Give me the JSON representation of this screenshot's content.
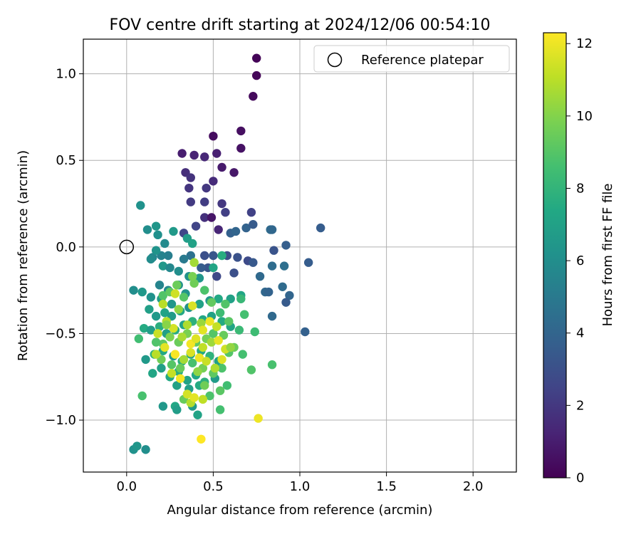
{
  "chart_data": {
    "type": "scatter",
    "title": "FOV centre drift starting at 2024/12/06 00:54:10",
    "xlabel": "Angular distance from reference (arcmin)",
    "ylabel": "Rotation from reference (arcmin)",
    "xlim": [
      -0.25,
      2.25
    ],
    "ylim": [
      -1.3,
      1.2
    ],
    "x_ticks": [
      0.0,
      0.5,
      1.0,
      1.5,
      2.0
    ],
    "x_tick_labels": [
      "0.0",
      "0.5",
      "1.0",
      "1.5",
      "2.0"
    ],
    "y_ticks": [
      -1.0,
      -0.5,
      0.0,
      0.5,
      1.0
    ],
    "y_tick_labels": [
      "−1.0",
      "−0.5",
      "0.0",
      "0.5",
      "1.0"
    ],
    "grid": true,
    "legend": {
      "placement": "top-right",
      "entries": [
        "Reference platepar"
      ]
    },
    "reference_point": {
      "x": 0.0,
      "y": 0.0,
      "label": "Reference platepar"
    },
    "colorbar": {
      "label": "Hours from first FF file",
      "range": [
        0,
        12.3
      ],
      "ticks": [
        0,
        2,
        4,
        6,
        8,
        10,
        12
      ],
      "tick_labels": [
        "0",
        "2",
        "4",
        "6",
        "8",
        "10",
        "12"
      ],
      "colormap": "viridis"
    },
    "points": [
      [
        0.75,
        1.09,
        0.1
      ],
      [
        0.75,
        0.99,
        0.2
      ],
      [
        0.73,
        0.87,
        0.3
      ],
      [
        0.5,
        0.64,
        0.4
      ],
      [
        0.66,
        0.67,
        0.5
      ],
      [
        0.66,
        0.57,
        0.6
      ],
      [
        0.32,
        0.54,
        1.0
      ],
      [
        0.39,
        0.53,
        1.2
      ],
      [
        0.45,
        0.52,
        1.4
      ],
      [
        0.52,
        0.54,
        1.1
      ],
      [
        0.55,
        0.46,
        0.9
      ],
      [
        0.62,
        0.43,
        0.8
      ],
      [
        0.34,
        0.43,
        1.6
      ],
      [
        0.37,
        0.4,
        1.8
      ],
      [
        0.5,
        0.38,
        1.5
      ],
      [
        0.36,
        0.34,
        1.9
      ],
      [
        0.46,
        0.34,
        2.0
      ],
      [
        0.37,
        0.26,
        2.1
      ],
      [
        0.45,
        0.26,
        2.2
      ],
      [
        0.55,
        0.25,
        2.0
      ],
      [
        0.57,
        0.2,
        2.3
      ],
      [
        0.45,
        0.17,
        1.7
      ],
      [
        0.49,
        0.17,
        0.7
      ],
      [
        0.72,
        0.2,
        2.4
      ],
      [
        0.4,
        0.12,
        2.5
      ],
      [
        0.53,
        0.1,
        1.3
      ],
      [
        0.33,
        0.08,
        2.6
      ],
      [
        0.6,
        0.08,
        3.8
      ],
      [
        0.63,
        0.09,
        4.0
      ],
      [
        0.69,
        0.11,
        3.9
      ],
      [
        0.73,
        0.13,
        3.5
      ],
      [
        0.83,
        0.1,
        4.3
      ],
      [
        0.84,
        0.1,
        4.1
      ],
      [
        1.12,
        0.11,
        3.6
      ],
      [
        0.92,
        0.01,
        3.7
      ],
      [
        0.85,
        -0.02,
        3.2
      ],
      [
        0.45,
        -0.05,
        3.0
      ],
      [
        0.5,
        -0.05,
        3.3
      ],
      [
        0.58,
        -0.05,
        2.9
      ],
      [
        0.64,
        -0.06,
        3.1
      ],
      [
        0.7,
        -0.08,
        2.8
      ],
      [
        0.73,
        -0.09,
        3.4
      ],
      [
        1.05,
        -0.09,
        3.6
      ],
      [
        0.77,
        -0.17,
        4.2
      ],
      [
        0.84,
        -0.11,
        4.4
      ],
      [
        0.91,
        -0.11,
        4.5
      ],
      [
        0.62,
        -0.15,
        3.0
      ],
      [
        0.52,
        -0.17,
        2.7
      ],
      [
        0.47,
        -0.12,
        3.2
      ],
      [
        0.43,
        -0.12,
        3.6
      ],
      [
        0.37,
        -0.05,
        4.6
      ],
      [
        0.33,
        -0.07,
        5.0
      ],
      [
        0.24,
        -0.05,
        5.2
      ],
      [
        0.2,
        -0.05,
        5.4
      ],
      [
        0.15,
        -0.06,
        5.6
      ],
      [
        0.8,
        -0.26,
        4.1
      ],
      [
        0.82,
        -0.26,
        3.9
      ],
      [
        0.9,
        -0.23,
        4.3
      ],
      [
        0.94,
        -0.28,
        4.0
      ],
      [
        0.92,
        -0.32,
        3.5
      ],
      [
        0.84,
        -0.4,
        4.2
      ],
      [
        1.03,
        -0.49,
        3.8
      ],
      [
        0.08,
        0.24,
        6.2
      ],
      [
        0.12,
        0.1,
        6.0
      ],
      [
        0.17,
        0.12,
        6.4
      ],
      [
        0.18,
        0.07,
        6.1
      ],
      [
        0.27,
        0.09,
        6.6
      ],
      [
        0.35,
        0.05,
        6.8
      ],
      [
        0.38,
        0.02,
        7.0
      ],
      [
        0.22,
        0.02,
        5.8
      ],
      [
        0.17,
        -0.02,
        6.3
      ],
      [
        0.14,
        -0.07,
        5.9
      ],
      [
        0.21,
        -0.11,
        6.5
      ],
      [
        0.25,
        -0.12,
        5.7
      ],
      [
        0.3,
        -0.14,
        6.0
      ],
      [
        0.36,
        -0.17,
        6.2
      ],
      [
        0.42,
        -0.18,
        6.4
      ],
      [
        0.5,
        -0.12,
        7.2
      ],
      [
        0.55,
        -0.05,
        7.6
      ],
      [
        0.19,
        -0.22,
        5.5
      ],
      [
        0.24,
        -0.25,
        5.8
      ],
      [
        0.3,
        -0.22,
        6.1
      ],
      [
        0.34,
        -0.27,
        6.3
      ],
      [
        0.04,
        -0.25,
        6.0
      ],
      [
        0.09,
        -0.26,
        6.5
      ],
      [
        0.14,
        -0.29,
        6.2
      ],
      [
        0.2,
        -0.3,
        6.8
      ],
      [
        0.26,
        -0.33,
        6.4
      ],
      [
        0.13,
        -0.36,
        6.9
      ],
      [
        0.17,
        -0.4,
        6.6
      ],
      [
        0.22,
        -0.38,
        7.1
      ],
      [
        0.26,
        -0.4,
        6.7
      ],
      [
        0.31,
        -0.37,
        7.3
      ],
      [
        0.36,
        -0.35,
        6.2
      ],
      [
        0.42,
        -0.33,
        7.0
      ],
      [
        0.48,
        -0.31,
        6.5
      ],
      [
        0.53,
        -0.3,
        7.4
      ],
      [
        0.6,
        -0.3,
        7.0
      ],
      [
        0.66,
        -0.28,
        7.2
      ],
      [
        0.1,
        -0.47,
        7.5
      ],
      [
        0.14,
        -0.48,
        6.8
      ],
      [
        0.19,
        -0.46,
        7.7
      ],
      [
        0.23,
        -0.5,
        6.9
      ],
      [
        0.28,
        -0.48,
        7.6
      ],
      [
        0.33,
        -0.45,
        7.1
      ],
      [
        0.38,
        -0.43,
        7.8
      ],
      [
        0.44,
        -0.42,
        7.3
      ],
      [
        0.49,
        -0.4,
        7.0
      ],
      [
        0.55,
        -0.43,
        7.5
      ],
      [
        0.6,
        -0.46,
        7.2
      ],
      [
        0.11,
        -0.65,
        6.6
      ],
      [
        0.16,
        -0.62,
        7.9
      ],
      [
        0.21,
        -0.6,
        7.4
      ],
      [
        0.27,
        -0.63,
        6.8
      ],
      [
        0.32,
        -0.66,
        7.7
      ],
      [
        0.37,
        -0.62,
        7.1
      ],
      [
        0.43,
        -0.6,
        7.5
      ],
      [
        0.48,
        -0.63,
        7.9
      ],
      [
        0.53,
        -0.66,
        7.0
      ],
      [
        0.15,
        -0.73,
        7.2
      ],
      [
        0.2,
        -0.7,
        6.9
      ],
      [
        0.25,
        -0.75,
        7.4
      ],
      [
        0.3,
        -0.72,
        7.6
      ],
      [
        0.35,
        -0.77,
        7.1
      ],
      [
        0.4,
        -0.74,
        7.3
      ],
      [
        0.45,
        -0.78,
        7.8
      ],
      [
        0.51,
        -0.76,
        6.7
      ],
      [
        0.29,
        -0.8,
        7.0
      ],
      [
        0.36,
        -0.82,
        6.9
      ],
      [
        0.42,
        -0.8,
        7.5
      ],
      [
        0.21,
        -0.92,
        6.5
      ],
      [
        0.28,
        -0.92,
        7.3
      ],
      [
        0.29,
        -0.94,
        6.8
      ],
      [
        0.38,
        -0.92,
        6.6
      ],
      [
        0.41,
        -0.97,
        7.1
      ],
      [
        0.04,
        -1.17,
        6.2
      ],
      [
        0.06,
        -1.15,
        6.4
      ],
      [
        0.11,
        -1.17,
        6.0
      ],
      [
        0.07,
        -0.53,
        8.5
      ],
      [
        0.09,
        -0.86,
        8.7
      ],
      [
        0.21,
        -0.28,
        8.9
      ],
      [
        0.25,
        -0.26,
        9.2
      ],
      [
        0.29,
        -0.22,
        9.5
      ],
      [
        0.33,
        -0.29,
        9.0
      ],
      [
        0.39,
        -0.21,
        9.6
      ],
      [
        0.45,
        -0.25,
        8.8
      ],
      [
        0.49,
        -0.32,
        9.3
      ],
      [
        0.54,
        -0.38,
        8.4
      ],
      [
        0.57,
        -0.33,
        8.9
      ],
      [
        0.66,
        -0.3,
        8.2
      ],
      [
        0.68,
        -0.39,
        8.6
      ],
      [
        0.65,
        -0.48,
        8.3
      ],
      [
        0.59,
        -0.43,
        9.1
      ],
      [
        0.56,
        -0.51,
        9.4
      ],
      [
        0.5,
        -0.5,
        9.0
      ],
      [
        0.46,
        -0.53,
        9.7
      ],
      [
        0.4,
        -0.55,
        9.2
      ],
      [
        0.35,
        -0.5,
        9.8
      ],
      [
        0.3,
        -0.55,
        9.5
      ],
      [
        0.25,
        -0.52,
        9.9
      ],
      [
        0.21,
        -0.56,
        9.3
      ],
      [
        0.17,
        -0.55,
        8.9
      ],
      [
        0.2,
        -0.65,
        9.6
      ],
      [
        0.26,
        -0.68,
        9.0
      ],
      [
        0.31,
        -0.7,
        9.4
      ],
      [
        0.38,
        -0.67,
        8.7
      ],
      [
        0.44,
        -0.7,
        9.7
      ],
      [
        0.5,
        -0.73,
        9.2
      ],
      [
        0.55,
        -0.7,
        8.8
      ],
      [
        0.59,
        -0.61,
        9.0
      ],
      [
        0.62,
        -0.58,
        9.5
      ],
      [
        0.67,
        -0.62,
        8.6
      ],
      [
        0.72,
        -0.71,
        8.9
      ],
      [
        0.74,
        -0.49,
        8.4
      ],
      [
        0.84,
        -0.68,
        8.7
      ],
      [
        0.58,
        -0.8,
        8.5
      ],
      [
        0.54,
        -0.83,
        9.1
      ],
      [
        0.48,
        -0.86,
        8.8
      ],
      [
        0.33,
        -0.88,
        9.4
      ],
      [
        0.54,
        -0.94,
        8.6
      ],
      [
        0.45,
        -0.8,
        9.6
      ],
      [
        0.38,
        -0.17,
        9.8
      ],
      [
        0.39,
        -0.09,
        10.6
      ],
      [
        0.3,
        -0.36,
        10.2
      ],
      [
        0.35,
        -0.45,
        10.8
      ],
      [
        0.28,
        -0.27,
        11.4
      ],
      [
        0.21,
        -0.33,
        11.0
      ],
      [
        0.38,
        -0.34,
        11.6
      ],
      [
        0.43,
        -0.44,
        10.4
      ],
      [
        0.44,
        -0.48,
        11.8
      ],
      [
        0.48,
        -0.43,
        12.0
      ],
      [
        0.52,
        -0.46,
        11.2
      ],
      [
        0.18,
        -0.5,
        11.3
      ],
      [
        0.23,
        -0.43,
        10.9
      ],
      [
        0.27,
        -0.47,
        11.5
      ],
      [
        0.32,
        -0.52,
        10.7
      ],
      [
        0.37,
        -0.56,
        12.1
      ],
      [
        0.4,
        -0.53,
        11.7
      ],
      [
        0.44,
        -0.58,
        11.1
      ],
      [
        0.49,
        -0.55,
        10.5
      ],
      [
        0.53,
        -0.54,
        11.9
      ],
      [
        0.57,
        -0.59,
        11.4
      ],
      [
        0.6,
        -0.58,
        10.3
      ],
      [
        0.17,
        -0.62,
        11.0
      ],
      [
        0.22,
        -0.58,
        11.8
      ],
      [
        0.28,
        -0.62,
        12.2
      ],
      [
        0.33,
        -0.65,
        10.6
      ],
      [
        0.37,
        -0.61,
        11.6
      ],
      [
        0.42,
        -0.64,
        12.0
      ],
      [
        0.46,
        -0.66,
        11.3
      ],
      [
        0.51,
        -0.7,
        10.8
      ],
      [
        0.55,
        -0.65,
        11.7
      ],
      [
        0.26,
        -0.73,
        11.2
      ],
      [
        0.31,
        -0.76,
        12.1
      ],
      [
        0.35,
        -0.85,
        11.5
      ],
      [
        0.37,
        -0.9,
        10.9
      ],
      [
        0.39,
        -0.87,
        11.8
      ],
      [
        0.44,
        -0.88,
        11.1
      ],
      [
        0.76,
        -0.99,
        12.0
      ],
      [
        0.43,
        -1.11,
        12.3
      ],
      [
        0.23,
        -0.45,
        10.1
      ],
      [
        0.41,
        -0.72,
        10.2
      ]
    ]
  }
}
